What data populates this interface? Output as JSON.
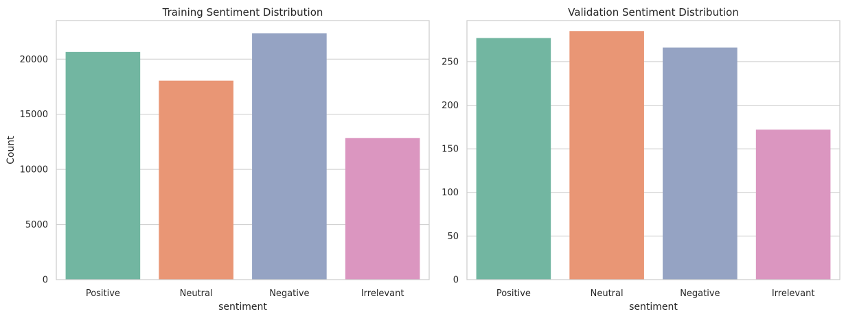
{
  "chart_data": [
    {
      "type": "bar",
      "title": "Training Sentiment Distribution",
      "xlabel": "sentiment",
      "ylabel": "Count",
      "categories": [
        "Positive",
        "Neutral",
        "Negative",
        "Irrelevant"
      ],
      "values": [
        20650,
        18050,
        22350,
        12850
      ],
      "ylim": [
        0,
        23500
      ],
      "yticks": [
        0,
        5000,
        10000,
        15000,
        20000
      ],
      "ytick_labels": [
        "0",
        "5000",
        "10000",
        "15000",
        "20000"
      ],
      "colors": [
        "#72b6a1",
        "#e99675",
        "#95a3c3",
        "#db96c0"
      ],
      "grid": true,
      "grid_axis": "y"
    },
    {
      "type": "bar",
      "title": "Validation Sentiment Distribution",
      "xlabel": "sentiment",
      "ylabel": "",
      "categories": [
        "Positive",
        "Neutral",
        "Negative",
        "Irrelevant"
      ],
      "values": [
        277,
        285,
        266,
        172
      ],
      "ylim": [
        0,
        297
      ],
      "yticks": [
        0,
        50,
        100,
        150,
        200,
        250
      ],
      "ytick_labels": [
        "0",
        "50",
        "100",
        "150",
        "200",
        "250"
      ],
      "colors": [
        "#72b6a1",
        "#e99675",
        "#95a3c3",
        "#db96c0"
      ],
      "grid": true,
      "grid_axis": "y"
    }
  ]
}
